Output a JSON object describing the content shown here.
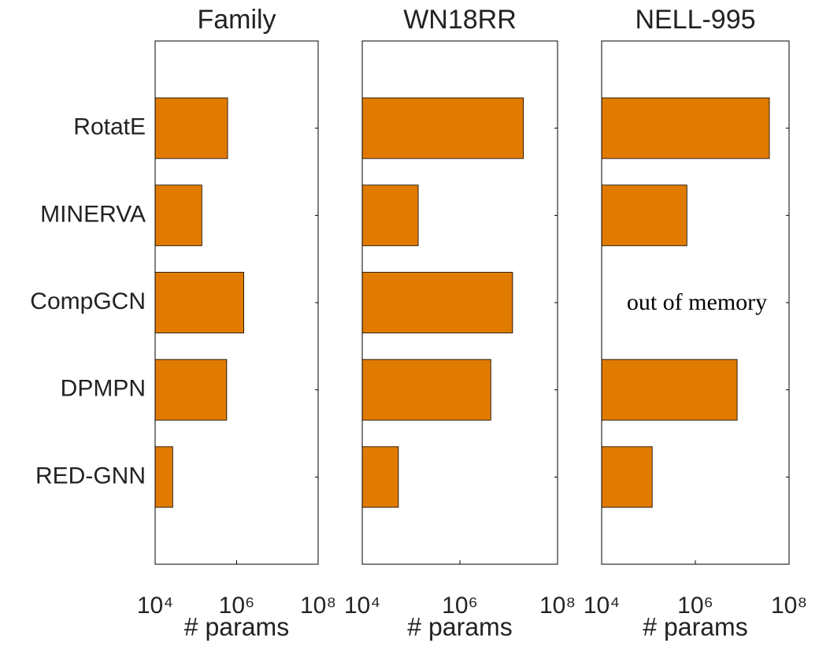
{
  "chart_data": [
    {
      "type": "bar",
      "title": "Family",
      "xscale": "log",
      "color": "#e07b00",
      "categories": [
        "RotatE",
        "MINERVA",
        "CompGCN",
        "DPMPN",
        "RED-GNN"
      ],
      "values": [
        600000,
        140000,
        1500000,
        570000,
        27000
      ],
      "xlim": [
        10000,
        100000000
      ],
      "xticks": [
        {
          "value": 10000,
          "label": "10⁴"
        },
        {
          "value": 1000000,
          "label": "10⁶"
        },
        {
          "value": 100000000,
          "label": "10⁸"
        }
      ],
      "xlabel": "# params"
    },
    {
      "type": "bar",
      "title": "WN18RR",
      "xscale": "log",
      "color": "#e07b00",
      "values": [
        20000000,
        140000,
        12000000,
        4300000,
        55000
      ],
      "xlim": [
        10000,
        100000000
      ],
      "xticks": [
        {
          "value": 10000,
          "label": "10⁴"
        },
        {
          "value": 1000000,
          "label": "10⁶"
        },
        {
          "value": 100000000,
          "label": "10⁸"
        }
      ],
      "xlabel": "# params"
    },
    {
      "type": "bar",
      "title": "NELL-995",
      "xscale": "log",
      "color": "#e07b00",
      "values": [
        38000000,
        660000,
        null,
        7800000,
        120000
      ],
      "annotation": "out of memory",
      "xlim": [
        10000,
        100000000
      ],
      "xticks": [
        {
          "value": 10000,
          "label": "10⁴"
        },
        {
          "value": 1000000,
          "label": "10⁶"
        },
        {
          "value": 100000000,
          "label": "10⁸"
        }
      ],
      "xlabel": "# params"
    }
  ]
}
